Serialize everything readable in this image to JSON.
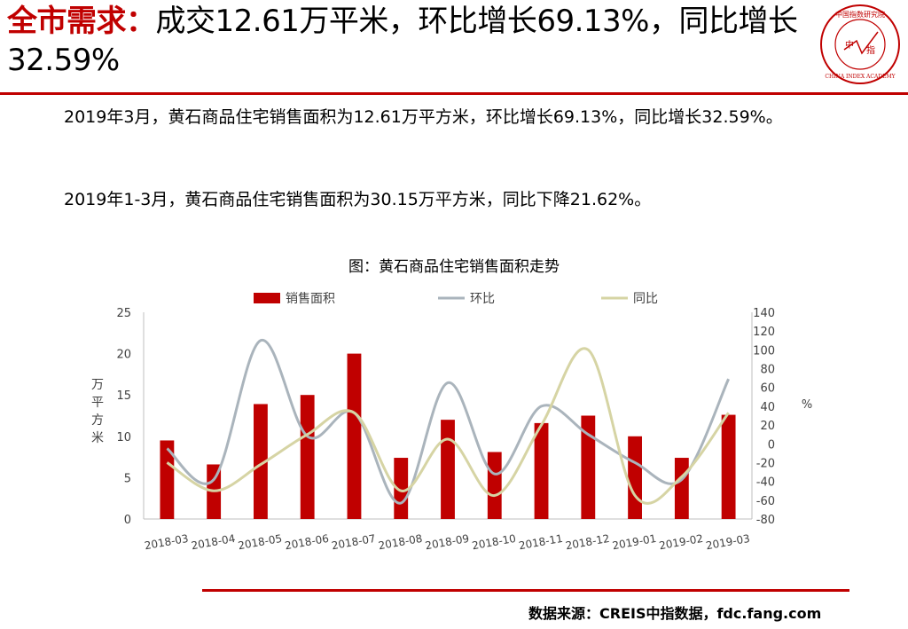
{
  "header": {
    "title_red": "全市需求：",
    "title_rest": "成交12.61万平米，环比增长69.13%，同比增长32.59%",
    "logo_text_top": "中国指数研究院",
    "logo_center_left": "中",
    "logo_center_right": "指",
    "logo_text_bottom": "CHINA INDEX ACADEMY"
  },
  "body": {
    "paragraph_1": "2019年3月，黄石商品住宅销售面积为12.61万平方米，环比增长69.13%，同比增长32.59%。",
    "paragraph_2": "2019年1-3月，黄石商品住宅销售面积为30.15万平方米，同比下降21.62%。"
  },
  "source": "数据来源：CREIS中指数据，fdc.fang.com",
  "colors": {
    "brand_red": "#c00000",
    "bar": "#c00000",
    "mom_line": "#aab4bc",
    "yoy_line": "#d6d4a4"
  },
  "chart_data": {
    "type": "bar",
    "title": "图：黄石商品住宅销售面积走势",
    "categories": [
      "2018-03",
      "2018-04",
      "2018-05",
      "2018-06",
      "2018-07",
      "2018-08",
      "2018-09",
      "2018-10",
      "2018-11",
      "2018-12",
      "2019-01",
      "2019-02",
      "2019-03"
    ],
    "series": [
      {
        "name": "销售面积",
        "type": "bar",
        "axis": "left",
        "values": [
          9.5,
          6.6,
          13.9,
          15.0,
          20.0,
          7.4,
          12.0,
          8.1,
          11.6,
          12.5,
          10.0,
          7.4,
          12.6
        ]
      },
      {
        "name": "环比",
        "type": "line",
        "axis": "right",
        "values": [
          -5,
          -38,
          110,
          8,
          33,
          -63,
          65,
          -32,
          40,
          10,
          -20,
          -38,
          69
        ]
      },
      {
        "name": "同比",
        "type": "line",
        "axis": "right",
        "values": [
          -20,
          -50,
          -22,
          10,
          33,
          -50,
          5,
          -55,
          20,
          100,
          -55,
          -35,
          33
        ]
      }
    ],
    "ylabel": "万平方米",
    "ylabel_right": "%",
    "ylim": [
      0,
      25
    ],
    "yticks": [
      0,
      5,
      10,
      15,
      20,
      25
    ],
    "ylim_right": [
      -80,
      140
    ],
    "yticks_right": [
      -80,
      -60,
      -40,
      -20,
      0,
      20,
      40,
      60,
      80,
      100,
      120,
      140
    ],
    "legend_position": "top-center",
    "grid": false
  }
}
